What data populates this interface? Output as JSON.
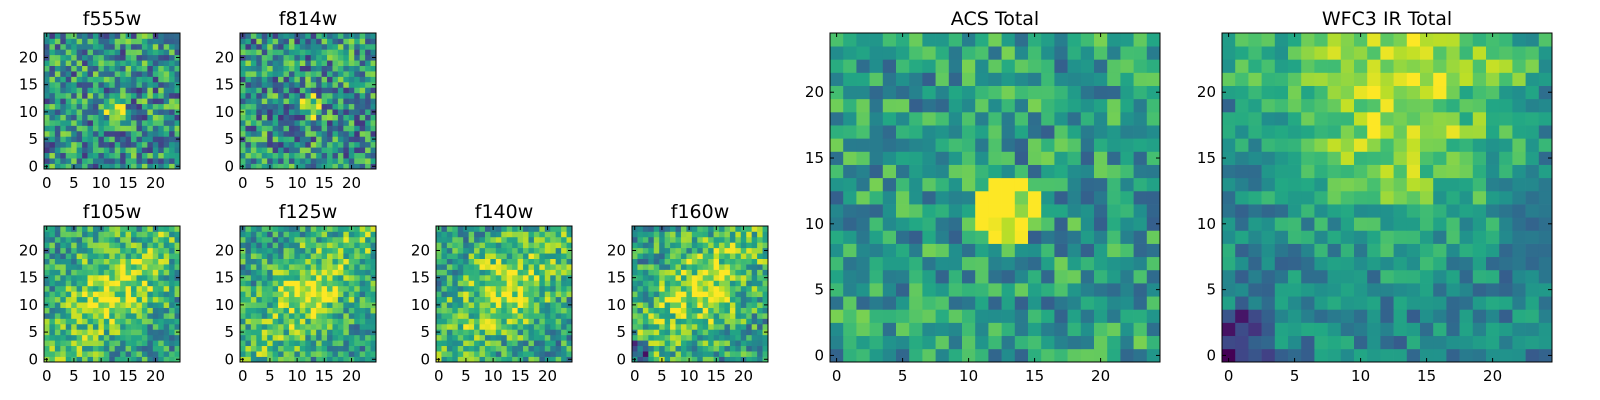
{
  "figure": {
    "background": "#ffffff",
    "colormap": "viridis"
  },
  "chart_data": [
    {
      "type": "heatmap",
      "title": "f555w",
      "grid_size": 25,
      "xticks": [
        0,
        5,
        10,
        15,
        20
      ],
      "yticks": [
        0,
        5,
        10,
        15,
        20
      ],
      "xlim": [
        0,
        24
      ],
      "ylim": [
        0,
        24
      ],
      "source": "center-bright, high noise"
    },
    {
      "type": "heatmap",
      "title": "f814w",
      "grid_size": 25,
      "xticks": [
        0,
        5,
        10,
        15,
        20
      ],
      "yticks": [
        0,
        5,
        10,
        15,
        20
      ],
      "xlim": [
        0,
        24
      ],
      "ylim": [
        0,
        24
      ],
      "source": "center-bright, high noise"
    },
    {
      "type": "heatmap",
      "title": "f105w",
      "grid_size": 25,
      "xticks": [
        0,
        5,
        10,
        15,
        20
      ],
      "yticks": [
        0,
        5,
        10,
        15,
        20
      ],
      "xlim": [
        0,
        24
      ],
      "ylim": [
        0,
        24
      ],
      "source": "diffuse bright band"
    },
    {
      "type": "heatmap",
      "title": "f125w",
      "grid_size": 25,
      "xticks": [
        0,
        5,
        10,
        15,
        20
      ],
      "yticks": [
        0,
        5,
        10,
        15,
        20
      ],
      "xlim": [
        0,
        24
      ],
      "ylim": [
        0,
        24
      ],
      "source": "diffuse bright"
    },
    {
      "type": "heatmap",
      "title": "f140w",
      "grid_size": 25,
      "xticks": [
        0,
        5,
        10,
        15,
        20
      ],
      "yticks": [
        0,
        5,
        10,
        15,
        20
      ],
      "xlim": [
        0,
        24
      ],
      "ylim": [
        0,
        24
      ],
      "source": "diffuse bright"
    },
    {
      "type": "heatmap",
      "title": "f160w",
      "grid_size": 25,
      "xticks": [
        0,
        5,
        10,
        15,
        20
      ],
      "yticks": [
        0,
        5,
        10,
        15,
        20
      ],
      "xlim": [
        0,
        24
      ],
      "ylim": [
        0,
        24
      ],
      "source": "diffuse bright, dark lower-left"
    },
    {
      "type": "heatmap",
      "title": "ACS Total",
      "grid_size": 25,
      "xticks": [
        0,
        5,
        10,
        15,
        20
      ],
      "yticks": [
        0,
        5,
        10,
        15,
        20
      ],
      "xlim": [
        0,
        24
      ],
      "ylim": [
        0,
        24
      ],
      "source": "compact bright core near (13,11)"
    },
    {
      "type": "heatmap",
      "title": "WFC3 IR Total",
      "grid_size": 25,
      "xticks": [
        0,
        5,
        10,
        15,
        20
      ],
      "yticks": [
        0,
        5,
        10,
        15,
        20
      ],
      "xlim": [
        0,
        24
      ],
      "ylim": [
        0,
        24
      ],
      "source": "bright upper-center, dark lower-left"
    }
  ]
}
